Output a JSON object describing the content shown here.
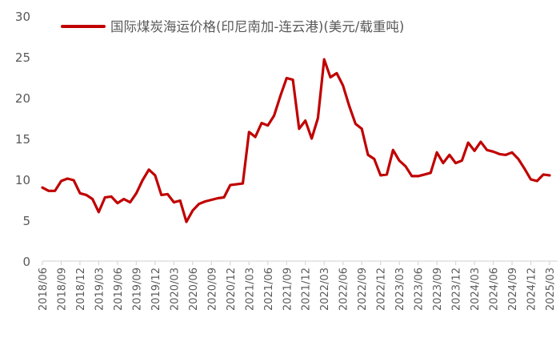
{
  "chart_data": {
    "type": "line",
    "title": "",
    "xlabel": "",
    "ylabel": "",
    "ylim": [
      0,
      30
    ],
    "yticks": [
      0,
      5,
      10,
      15,
      20,
      25,
      30
    ],
    "grid": false,
    "legend_position": "top",
    "x_tick_labels": [
      "2018/06",
      "2018/09",
      "2018/12",
      "2019/03",
      "2019/06",
      "2019/09",
      "2019/12",
      "2020/03",
      "2020/06",
      "2020/09",
      "2020/12",
      "2021/03",
      "2021/06",
      "2021/09",
      "2021/12",
      "2022/03",
      "2022/06",
      "2022/09",
      "2022/12",
      "2023/03",
      "2023/06",
      "2023/09",
      "2023/12",
      "2024/03",
      "2024/06",
      "2024/09",
      "2024/12",
      "2025/03"
    ],
    "series": [
      {
        "name": "国际煤炭海运价格(印尼南加-连云港)(美元/载重吨)",
        "color": "#C00000",
        "points": [
          [
            "2018/06",
            9.0
          ],
          [
            "2018/07",
            8.6
          ],
          [
            "2018/08",
            8.6
          ],
          [
            "2018/09",
            9.8
          ],
          [
            "2018/10",
            10.1
          ],
          [
            "2018/11",
            9.9
          ],
          [
            "2018/12",
            8.3
          ],
          [
            "2019/01",
            8.1
          ],
          [
            "2019/02",
            7.6
          ],
          [
            "2019/03",
            6.0
          ],
          [
            "2019/04",
            7.8
          ],
          [
            "2019/05",
            7.9
          ],
          [
            "2019/06",
            7.1
          ],
          [
            "2019/07",
            7.6
          ],
          [
            "2019/08",
            7.2
          ],
          [
            "2019/09",
            8.3
          ],
          [
            "2019/10",
            9.9
          ],
          [
            "2019/11",
            11.2
          ],
          [
            "2019/12",
            10.5
          ],
          [
            "2020/01",
            8.1
          ],
          [
            "2020/02",
            8.2
          ],
          [
            "2020/03",
            7.2
          ],
          [
            "2020/04",
            7.4
          ],
          [
            "2020/05",
            4.8
          ],
          [
            "2020/06",
            6.2
          ],
          [
            "2020/07",
            7.0
          ],
          [
            "2020/08",
            7.3
          ],
          [
            "2020/09",
            7.5
          ],
          [
            "2020/10",
            7.7
          ],
          [
            "2020/11",
            7.8
          ],
          [
            "2020/12",
            9.3
          ],
          [
            "2021/01",
            9.4
          ],
          [
            "2021/02",
            9.5
          ],
          [
            "2021/03",
            15.8
          ],
          [
            "2021/04",
            15.2
          ],
          [
            "2021/05",
            16.9
          ],
          [
            "2021/06",
            16.6
          ],
          [
            "2021/07",
            17.8
          ],
          [
            "2021/08",
            20.2
          ],
          [
            "2021/09",
            22.4
          ],
          [
            "2021/10",
            22.2
          ],
          [
            "2021/11",
            16.2
          ],
          [
            "2021/12",
            17.2
          ],
          [
            "2022/01",
            15.0
          ],
          [
            "2022/02",
            17.5
          ],
          [
            "2022/03",
            24.7
          ],
          [
            "2022/04",
            22.5
          ],
          [
            "2022/05",
            23.0
          ],
          [
            "2022/06",
            21.5
          ],
          [
            "2022/07",
            19.0
          ],
          [
            "2022/08",
            16.8
          ],
          [
            "2022/09",
            16.2
          ],
          [
            "2022/10",
            13.0
          ],
          [
            "2022/11",
            12.5
          ],
          [
            "2022/12",
            10.5
          ],
          [
            "2023/01",
            10.6
          ],
          [
            "2023/02",
            13.6
          ],
          [
            "2023/03",
            12.3
          ],
          [
            "2023/04",
            11.6
          ],
          [
            "2023/05",
            10.4
          ],
          [
            "2023/06",
            10.4
          ],
          [
            "2023/07",
            10.6
          ],
          [
            "2023/08",
            10.8
          ],
          [
            "2023/09",
            13.3
          ],
          [
            "2023/10",
            12.0
          ],
          [
            "2023/11",
            13.0
          ],
          [
            "2023/12",
            12.0
          ],
          [
            "2024/01",
            12.3
          ],
          [
            "2024/02",
            14.5
          ],
          [
            "2024/03",
            13.5
          ],
          [
            "2024/04",
            14.6
          ],
          [
            "2024/05",
            13.6
          ],
          [
            "2024/06",
            13.4
          ],
          [
            "2024/07",
            13.1
          ],
          [
            "2024/08",
            13.0
          ],
          [
            "2024/09",
            13.3
          ],
          [
            "2024/10",
            12.5
          ],
          [
            "2024/11",
            11.3
          ],
          [
            "2024/12",
            10.0
          ],
          [
            "2025/01",
            9.8
          ],
          [
            "2025/02",
            10.6
          ],
          [
            "2025/03",
            10.5
          ]
        ]
      }
    ]
  },
  "legend": {
    "label": "国际煤炭海运价格(印尼南加-连云港)(美元/载重吨)"
  },
  "axes": {
    "y_labels": [
      "0",
      "5",
      "10",
      "15",
      "20",
      "25",
      "30"
    ]
  }
}
